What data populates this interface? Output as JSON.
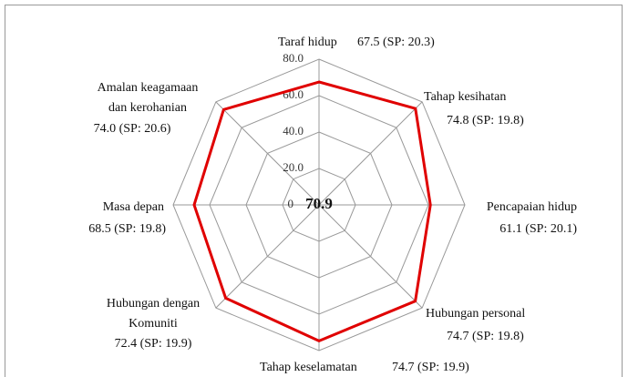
{
  "chart_data": {
    "type": "radar",
    "categories": [
      [
        "Taraf  hidup"
      ],
      [
        "Tahap kesihatan"
      ],
      [
        "Pencapaian hidup"
      ],
      [
        "Hubungan personal"
      ],
      [
        "Tahap keselamatan"
      ],
      [
        "Hubungan dengan",
        "Komuniti"
      ],
      [
        "Masa depan"
      ],
      [
        "Amalan keagamaan",
        "dan kerohanian"
      ]
    ],
    "values": [
      67.5,
      74.8,
      61.1,
      74.7,
      74.7,
      72.4,
      68.5,
      74.0
    ],
    "value_labels": [
      "67.5 (SP: 20.3)",
      "74.8 (SP: 19.8)",
      "61.1 (SP: 20.1)",
      "74.7 (SP: 19.8)",
      "74.7 (SP: 19.9)",
      "72.4 (SP: 19.9)",
      "68.5 (SP: 19.8)",
      "74.0 (SP: 20.6)"
    ],
    "center_value": 70.9,
    "color": "#e00000",
    "rlim": [
      0,
      80
    ],
    "rticks": [
      0,
      {
        "value": 20,
        "label": "20.0"
      },
      {
        "value": 40,
        "label": "40.0"
      },
      {
        "value": 60,
        "label": "60.0"
      },
      {
        "value": 80,
        "label": "80.0"
      }
    ],
    "grid": true
  }
}
